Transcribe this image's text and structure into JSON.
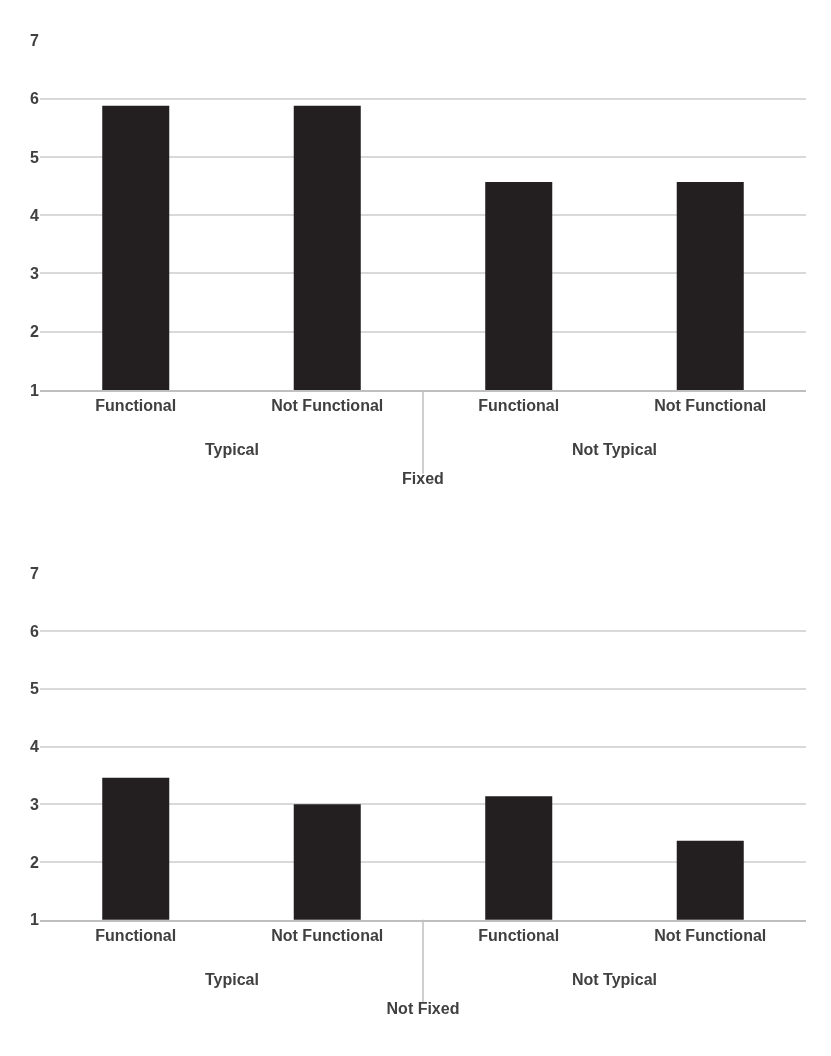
{
  "chart_data": [
    {
      "type": "bar",
      "xlabel": "Fixed",
      "categories": [
        "Functional",
        "Not Functional",
        "Functional",
        "Not Functional"
      ],
      "values": [
        5.88,
        5.88,
        4.57,
        4.57
      ],
      "color": "#231f20",
      "annotations": [
        "Typical",
        "Not Typical"
      ],
      "ylim": [
        1,
        7
      ],
      "yticks": [
        1,
        2,
        3,
        4,
        5,
        6,
        7
      ],
      "grid": "y"
    },
    {
      "type": "bar",
      "xlabel": "Not Fixed",
      "categories": [
        "Functional",
        "Not Functional",
        "Functional",
        "Not Functional"
      ],
      "values": [
        3.46,
        3.0,
        3.14,
        2.37
      ],
      "color": "#231f20",
      "annotations": [
        "Typical",
        "Not Typical"
      ],
      "ylim": [
        1,
        7
      ],
      "yticks": [
        1,
        2,
        3,
        4,
        5,
        6,
        7
      ],
      "grid": "y"
    }
  ]
}
